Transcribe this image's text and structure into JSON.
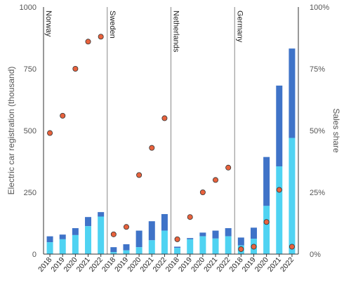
{
  "chart_data": {
    "type": "bar",
    "title": "",
    "ylabel": "Electric car registration (thousand)",
    "y2label": "Sales share",
    "ylim": [
      0,
      1000
    ],
    "y2lim": [
      0,
      100
    ],
    "yticks": [
      "0",
      "250",
      "500",
      "750",
      "1000"
    ],
    "y2ticks": [
      "0%",
      "25%",
      "50%",
      "75%",
      "100%"
    ],
    "colors": {
      "light": "#4FD3F2",
      "dark": "#3F73C8",
      "point": "#E8623D",
      "point_edge": "#333333",
      "divider": "#888888",
      "axis": "#333333"
    },
    "panels": [
      {
        "name": "Norway",
        "categories": [
          "2018",
          "2019",
          "2020",
          "2021",
          "2022"
        ],
        "light": [
          48,
          60,
          77,
          113,
          152
        ],
        "total": [
          72,
          79,
          105,
          150,
          170
        ],
        "share": [
          49,
          56,
          75,
          86,
          88
        ]
      },
      {
        "name": "Sweden",
        "categories": [
          "2018",
          "2019",
          "2020",
          "2021",
          "2022"
        ],
        "light": [
          8,
          15,
          28,
          56,
          95
        ],
        "total": [
          28,
          40,
          95,
          133,
          162
        ],
        "share": [
          8,
          11,
          32,
          43,
          55
        ]
      },
      {
        "name": "Netherlands",
        "categories": [
          "2018",
          "2019",
          "2020",
          "2021",
          "2022"
        ],
        "light": [
          25,
          60,
          72,
          63,
          72
        ],
        "total": [
          30,
          65,
          87,
          95,
          105
        ],
        "share": [
          6,
          15,
          25,
          30,
          35
        ]
      },
      {
        "name": "Germany",
        "categories": [
          "2018",
          "2019",
          "2020",
          "2021",
          "2022"
        ],
        "light": [
          35,
          62,
          195,
          355,
          470
        ],
        "total": [
          67,
          107,
          393,
          682,
          832
        ],
        "share": [
          2,
          3,
          13,
          26,
          3
        ]
      }
    ]
  }
}
